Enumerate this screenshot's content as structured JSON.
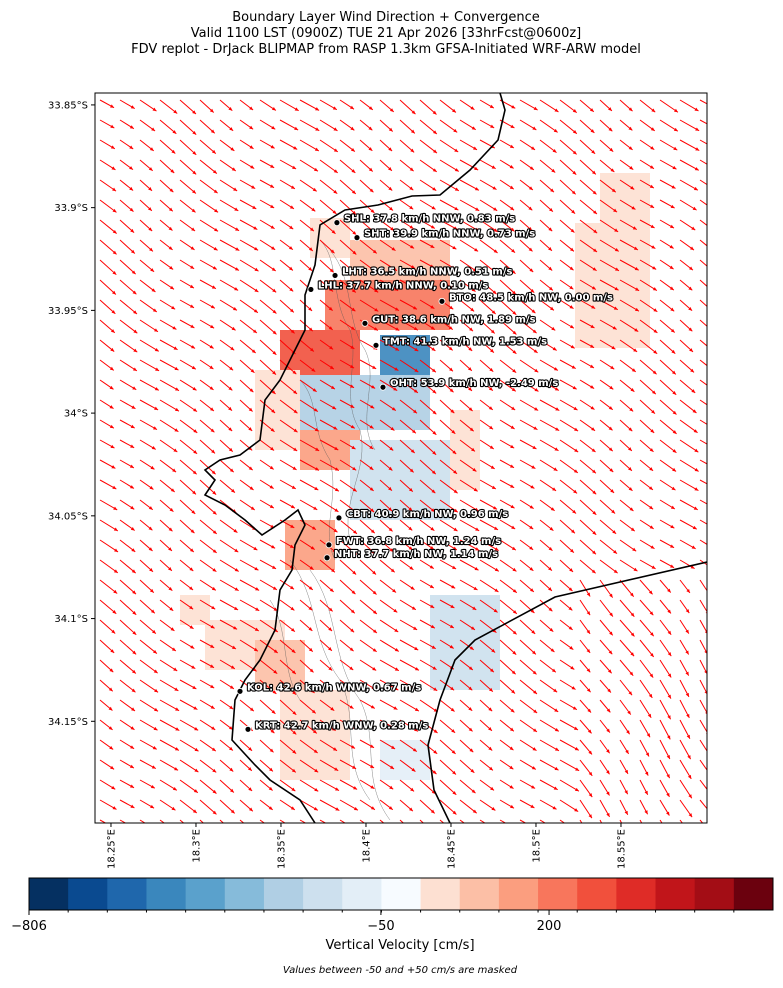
{
  "chart_data": {
    "type": "map",
    "title": [
      "Boundary Layer Wind Direction + Convergence",
      "Valid 1100 LST (0900Z) TUE 21 Apr 2026 [33hrFcst@0600z]",
      "FDV replot - DrJack BLIPMAP from RASP 1.3km GFSA-Initiated WRF-ARW model"
    ],
    "xlim": [
      18.2406,
      18.6006
    ],
    "ylim": [
      34.1995,
      33.8442
    ],
    "xticks": [
      {
        "value": 18.25,
        "label": "18.25°E"
      },
      {
        "value": 18.3,
        "label": "18.3°E"
      },
      {
        "value": 18.35,
        "label": "18.35°E"
      },
      {
        "value": 18.4,
        "label": "18.4°E"
      },
      {
        "value": 18.45,
        "label": "18.45°E"
      },
      {
        "value": 18.5,
        "label": "18.5°E"
      },
      {
        "value": 18.55,
        "label": "18.55°E"
      }
    ],
    "yticks": [
      {
        "value": 33.85,
        "label": "33.85°S"
      },
      {
        "value": 33.9,
        "label": "33.9°S"
      },
      {
        "value": 33.95,
        "label": "33.95°S"
      },
      {
        "value": 34,
        "label": "34°S"
      },
      {
        "value": 34.05,
        "label": "34.05°S"
      },
      {
        "value": 34.1,
        "label": "34.1°S"
      },
      {
        "value": 34.15,
        "label": "34.15°S"
      }
    ],
    "stations": [
      {
        "label": "SHL: 37.8 km/h NNW, 0.83 m/s",
        "lon": 18.3829,
        "lat": 33.9073
      },
      {
        "label": "SHT: 39.9 km/h NNW, 0.73 m/s",
        "lon": 18.3947,
        "lat": 33.9146
      },
      {
        "label": "LHT: 36.5 km/h NNW, 0.51 m/s",
        "lon": 18.3818,
        "lat": 33.933
      },
      {
        "label": "LHL: 37.7 km/h NNW, 0.10 m/s",
        "lon": 18.3676,
        "lat": 33.9398
      },
      {
        "label": "BTO: 48.5 km/h NW, 0.00 m/s",
        "lon": 18.4447,
        "lat": 33.9456
      },
      {
        "label": "GUT: 38.6 km/h NW, 1.89 m/s",
        "lon": 18.3994,
        "lat": 33.9563
      },
      {
        "label": "TMT: 41.3 km/h NW, 1.53 m/s",
        "lon": 18.4059,
        "lat": 33.967
      },
      {
        "label": "OHT: 53.9 km/h NW, -2.49 m/s",
        "lon": 18.41,
        "lat": 33.9874
      },
      {
        "label": "CBT: 40.9 km/h NW, 0.96 m/s",
        "lon": 18.3841,
        "lat": 34.051
      },
      {
        "label": "FWT: 36.8 km/h NW, 1.24 m/s",
        "lon": 18.3782,
        "lat": 34.0641
      },
      {
        "label": "NHT: 37.7 km/h NW, 1.14 m/s",
        "lon": 18.3771,
        "lat": 34.0704
      },
      {
        "label": "KOL: 42.6 km/h WNW, 0.67 m/s",
        "lon": 18.3259,
        "lat": 34.1354
      },
      {
        "label": "KRT: 42.7 km/h WNW, 0.28 m/s",
        "lon": 18.3306,
        "lat": 34.1539
      }
    ],
    "arrow_color": "#ff0000",
    "colorbar": {
      "label": "Vertical Velocity [cm/s]",
      "colors": [
        "#053061",
        "#0a4a90",
        "#1f67ac",
        "#3a87bd",
        "#5aa1cc",
        "#86bbda",
        "#b0cfe4",
        "#cde0ee",
        "#e3eef7",
        "#f7fbff",
        "#fde0d2",
        "#fcbfa6",
        "#fb9e7f",
        "#f8765c",
        "#f1503c",
        "#df2c27",
        "#c1151a",
        "#a30d15",
        "#6b010e"
      ],
      "ticks": [
        {
          "value": -806,
          "label": "−806"
        },
        {
          "value": -50,
          "label": "−50"
        },
        200
      ]
    },
    "note": "Values between -50 and +50 cm/s are masked"
  }
}
